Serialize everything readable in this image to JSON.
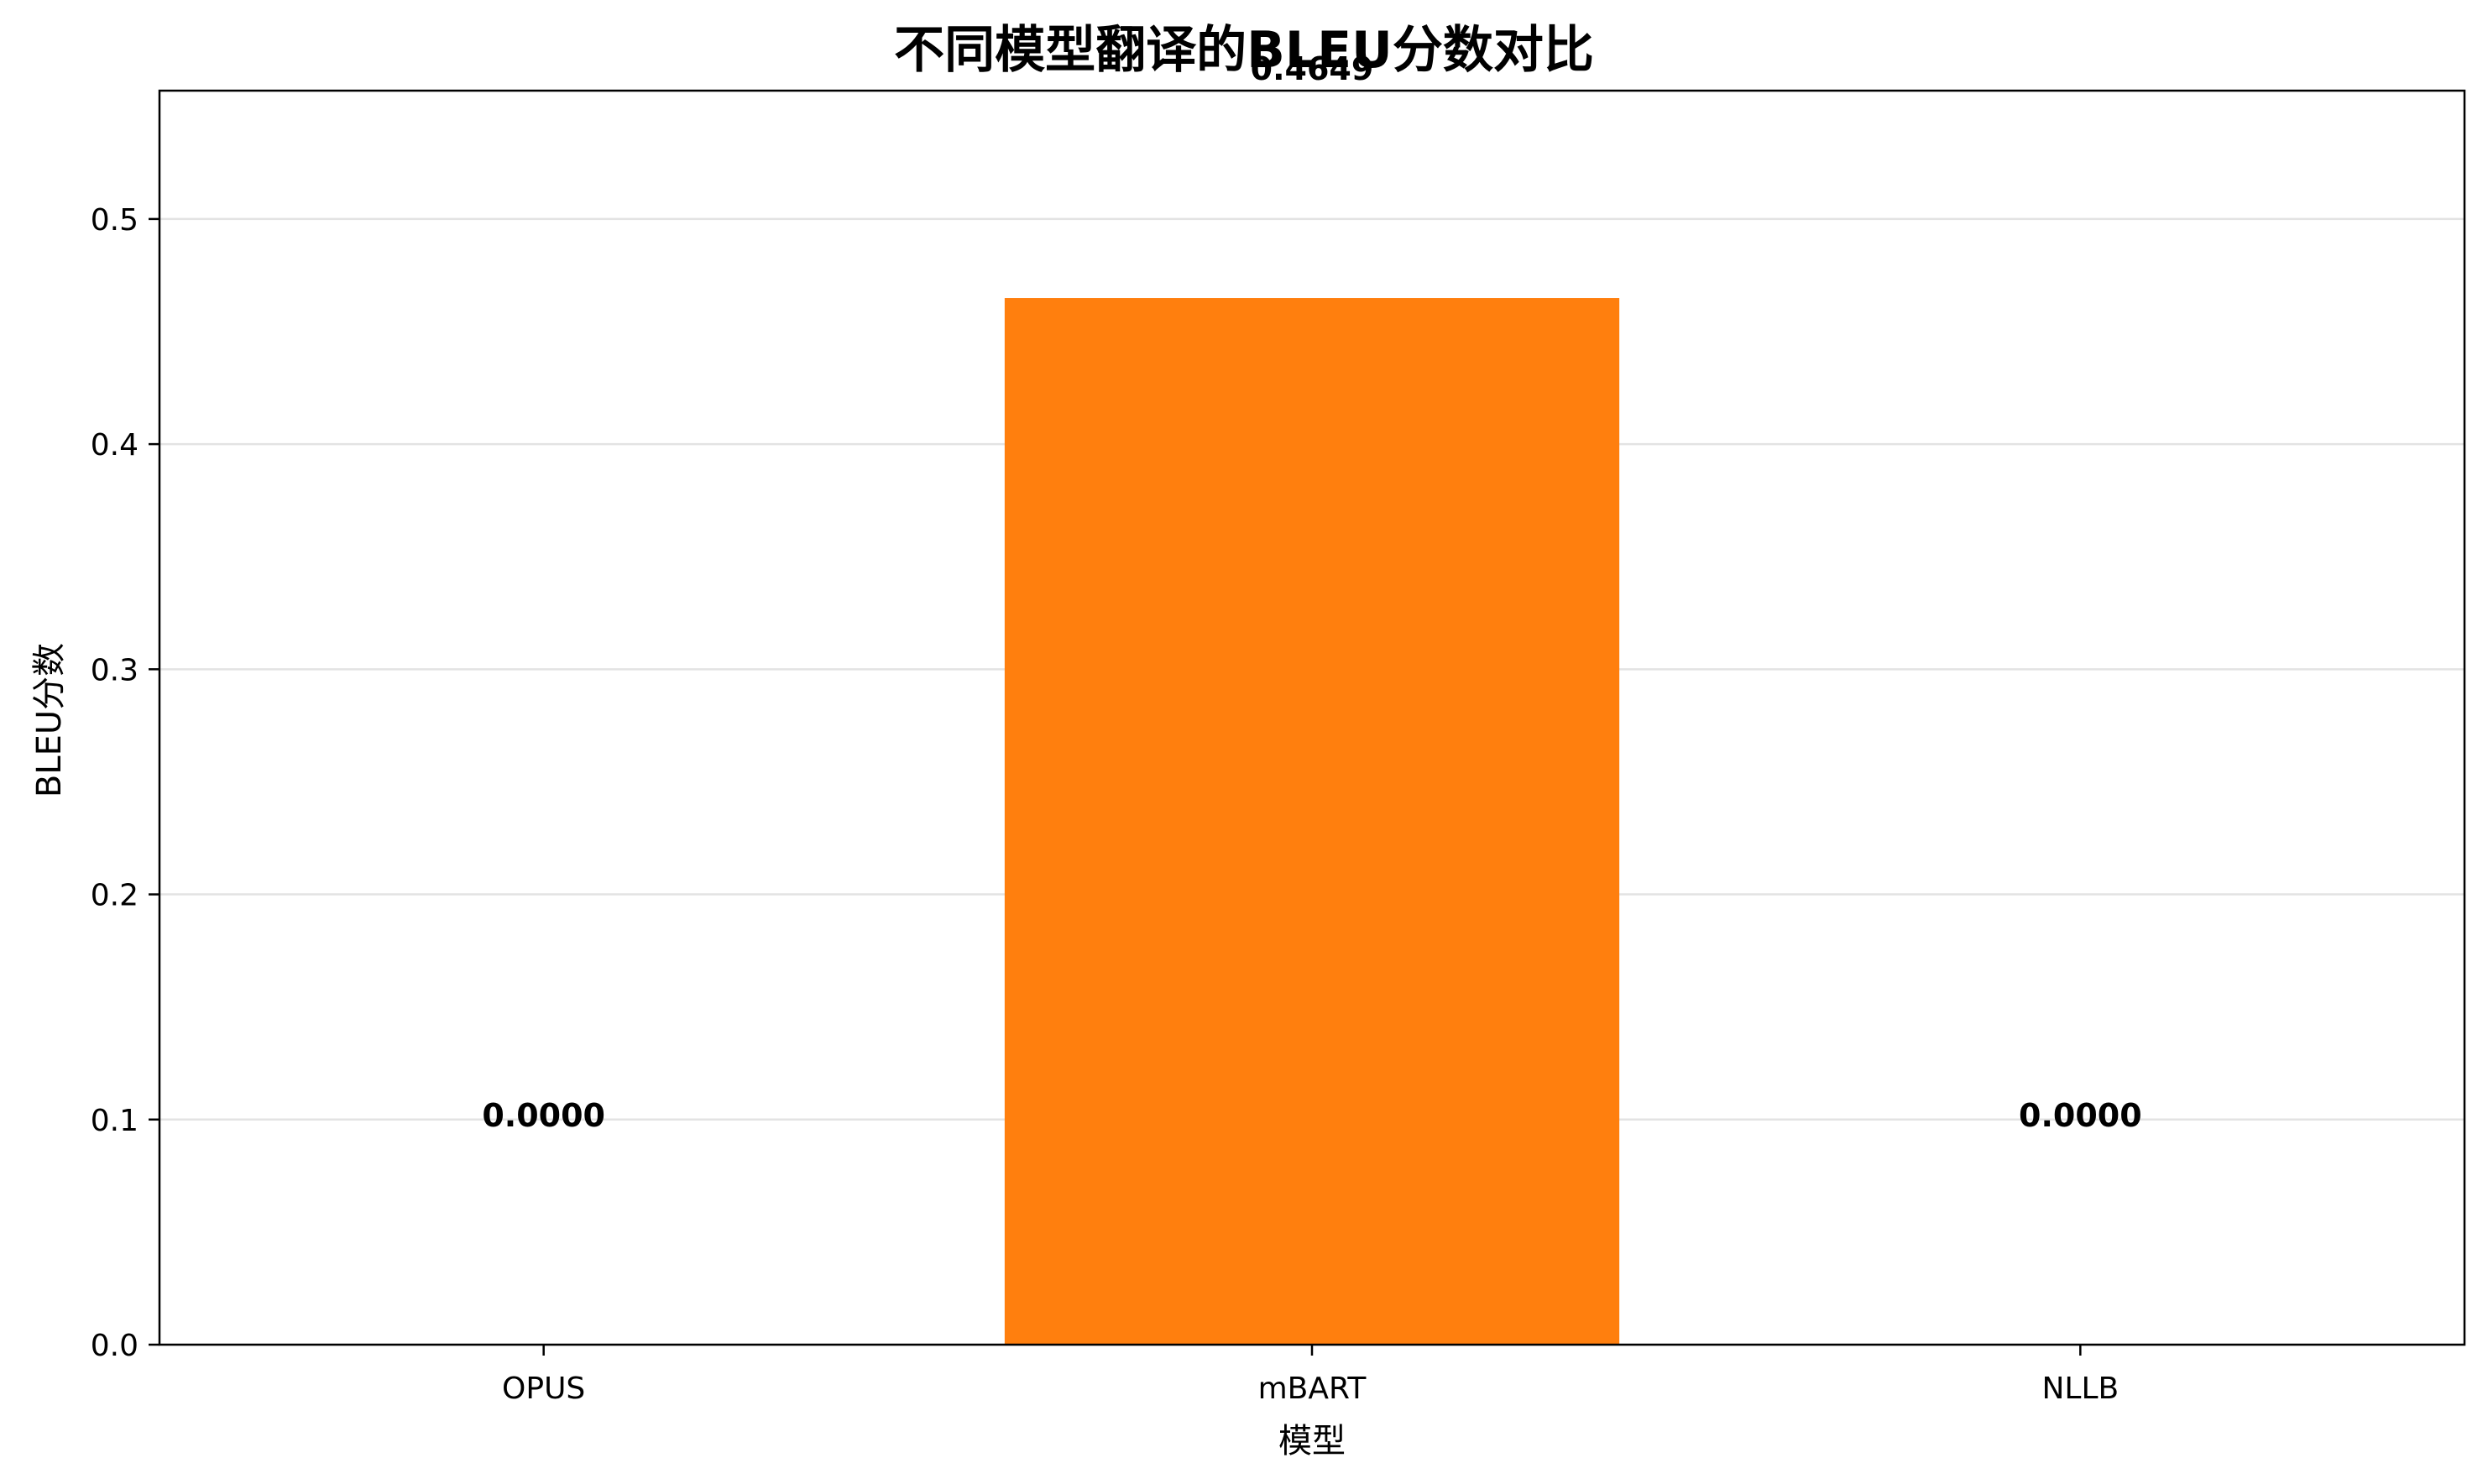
{
  "chart_data": {
    "type": "bar",
    "title": "不同模型翻译的BLEU分数对比",
    "xlabel": "模型",
    "ylabel": "BLEU分数",
    "categories": [
      "OPUS",
      "mBART",
      "NLLB"
    ],
    "values": [
      0.0,
      0.4649,
      0.0
    ],
    "value_labels": [
      "0.0000",
      "0.4649",
      "0.0000"
    ],
    "ylim": [
      0,
      0.557
    ],
    "yticks": [
      0.0,
      0.1,
      0.2,
      0.3,
      0.4,
      0.5
    ],
    "ytick_labels": [
      "0.0",
      "0.1",
      "0.2",
      "0.3",
      "0.4",
      "0.5"
    ],
    "grid": "y",
    "bar_colors": [
      "#1f77b4",
      "#ff7f0e",
      "#2ca02c"
    ]
  }
}
